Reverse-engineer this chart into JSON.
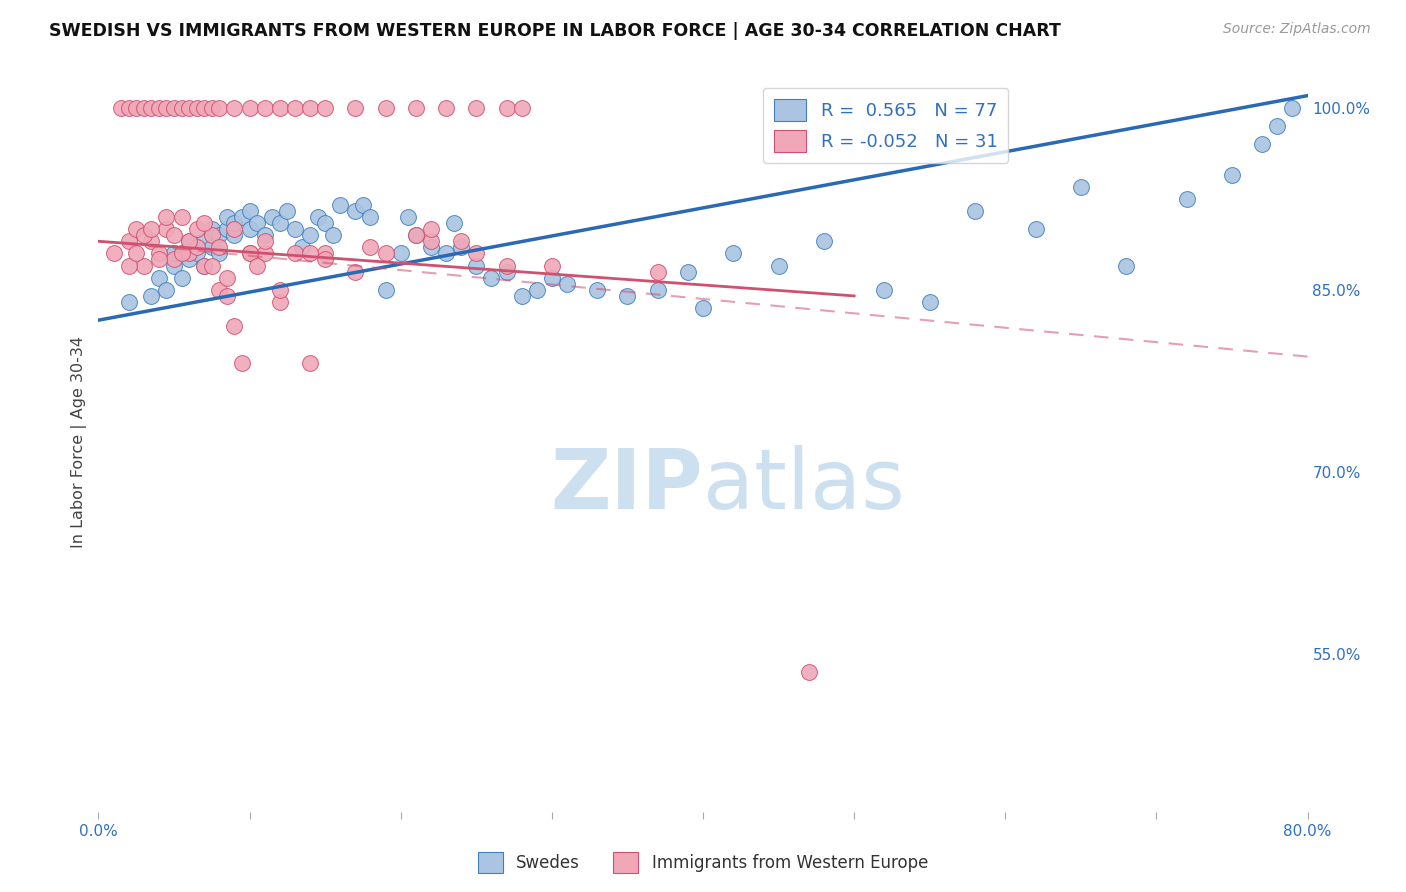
{
  "title": "SWEDISH VS IMMIGRANTS FROM WESTERN EUROPE IN LABOR FORCE | AGE 30-34 CORRELATION CHART",
  "source": "Source: ZipAtlas.com",
  "ylabel": "In Labor Force | Age 30-34",
  "xlim": [
    0.0,
    80.0
  ],
  "ylim": [
    42.0,
    103.0
  ],
  "xticks": [
    0.0,
    10.0,
    20.0,
    30.0,
    40.0,
    50.0,
    60.0,
    70.0,
    80.0
  ],
  "xtick_labels": [
    "0.0%",
    "",
    "",
    "",
    "",
    "",
    "",
    "",
    "80.0%"
  ],
  "ytick_labels_right": [
    "100.0%",
    "85.0%",
    "70.0%",
    "55.0%"
  ],
  "ytick_positions_right": [
    100.0,
    85.0,
    70.0,
    55.0
  ],
  "blue_R": 0.565,
  "blue_N": 77,
  "pink_R": -0.052,
  "pink_N": 31,
  "blue_color": "#aac4e2",
  "blue_edge_color": "#4080c0",
  "pink_color": "#f0a8b8",
  "pink_edge_color": "#d05070",
  "blue_line_color": "#2a6ab5",
  "pink_line_color": "#d05070",
  "blue_scatter_x": [
    2.0,
    3.5,
    4.0,
    4.5,
    5.0,
    5.0,
    5.5,
    5.8,
    6.0,
    6.0,
    6.5,
    7.0,
    7.0,
    7.5,
    7.5,
    8.0,
    8.0,
    8.5,
    8.5,
    9.0,
    9.0,
    9.5,
    10.0,
    10.0,
    10.5,
    11.0,
    11.5,
    12.0,
    12.5,
    13.0,
    13.5,
    14.0,
    14.5,
    15.0,
    15.5,
    16.0,
    17.0,
    17.5,
    18.0,
    19.0,
    20.0,
    20.5,
    21.0,
    22.0,
    23.0,
    23.5,
    24.0,
    25.0,
    26.0,
    27.0,
    28.0,
    29.0,
    30.0,
    31.0,
    33.0,
    35.0,
    37.0,
    39.0,
    40.0,
    42.0,
    45.0,
    48.0,
    52.0,
    55.0,
    58.0,
    62.0,
    65.0,
    68.0,
    72.0,
    75.0,
    77.0,
    78.0,
    79.0
  ],
  "blue_scatter_y": [
    84.0,
    84.5,
    86.0,
    85.0,
    87.0,
    88.0,
    86.0,
    88.0,
    87.5,
    89.0,
    88.0,
    87.0,
    89.0,
    88.5,
    90.0,
    88.0,
    89.5,
    90.0,
    91.0,
    89.5,
    90.5,
    91.0,
    90.0,
    91.5,
    90.5,
    89.5,
    91.0,
    90.5,
    91.5,
    90.0,
    88.5,
    89.5,
    91.0,
    90.5,
    89.5,
    92.0,
    91.5,
    92.0,
    91.0,
    85.0,
    88.0,
    91.0,
    89.5,
    88.5,
    88.0,
    90.5,
    88.5,
    87.0,
    86.0,
    86.5,
    84.5,
    85.0,
    86.0,
    85.5,
    85.0,
    84.5,
    85.0,
    86.5,
    83.5,
    88.0,
    87.0,
    89.0,
    85.0,
    84.0,
    91.5,
    90.0,
    93.5,
    87.0,
    92.5,
    94.5,
    97.0,
    98.5,
    100.0
  ],
  "pink_scatter_x": [
    1.0,
    2.0,
    2.5,
    3.0,
    3.5,
    4.0,
    4.5,
    5.0,
    5.5,
    6.0,
    6.5,
    7.0,
    7.5,
    8.0,
    8.5,
    9.0,
    9.5,
    10.0,
    11.0,
    12.0,
    14.0,
    15.0,
    18.0,
    22.0,
    30.0,
    37.0,
    47.0
  ],
  "pink_scatter_y": [
    88.0,
    89.0,
    90.0,
    87.0,
    89.0,
    88.0,
    90.0,
    87.5,
    91.0,
    88.0,
    88.5,
    87.0,
    89.5,
    85.0,
    84.5,
    82.0,
    79.0,
    88.0,
    88.0,
    84.0,
    79.0,
    88.0,
    88.5,
    89.0,
    87.0,
    86.5,
    53.5
  ],
  "pink_scatter_x2": [
    2.0,
    2.5,
    3.0,
    3.5,
    4.0,
    4.5,
    5.0,
    5.5,
    6.0,
    6.5,
    7.0,
    7.5,
    8.0,
    8.5,
    9.0,
    10.0,
    10.5,
    11.0,
    12.0,
    13.0,
    14.0,
    15.0,
    17.0,
    19.0,
    21.0,
    22.0,
    24.0,
    25.0,
    27.0
  ],
  "pink_scatter_y2": [
    87.0,
    88.0,
    89.5,
    90.0,
    87.5,
    91.0,
    89.5,
    88.0,
    89.0,
    90.0,
    90.5,
    87.0,
    88.5,
    86.0,
    90.0,
    88.0,
    87.0,
    89.0,
    85.0,
    88.0,
    88.0,
    87.5,
    86.5,
    88.0,
    89.5,
    90.0,
    89.0,
    88.0,
    87.0
  ],
  "pink_top_x": [
    1.5,
    2.0,
    2.5,
    3.0,
    3.5,
    4.0,
    4.5,
    5.0,
    5.5,
    6.0,
    6.5,
    7.0,
    7.5,
    8.0,
    9.0,
    10.0,
    11.0,
    12.0,
    13.0,
    14.0,
    15.0,
    17.0,
    19.0,
    21.0,
    23.0,
    25.0,
    27.0,
    28.0
  ],
  "pink_top_y": [
    100.0,
    100.0,
    100.0,
    100.0,
    100.0,
    100.0,
    100.0,
    100.0,
    100.0,
    100.0,
    100.0,
    100.0,
    100.0,
    100.0,
    100.0,
    100.0,
    100.0,
    100.0,
    100.0,
    100.0,
    100.0,
    100.0,
    100.0,
    100.0,
    100.0,
    100.0,
    100.0,
    100.0
  ],
  "blue_line_x0": 0.0,
  "blue_line_x1": 80.0,
  "blue_line_y0": 82.5,
  "blue_line_y1": 101.0,
  "pink_line_x0": 0.0,
  "pink_line_x1": 50.0,
  "pink_line_y0": 89.0,
  "pink_line_y1": 84.5,
  "pink_dash_x0": 0.0,
  "pink_dash_x1": 80.0,
  "pink_dash_y0": 89.0,
  "pink_dash_y1": 79.5,
  "watermark_zip": "ZIP",
  "watermark_atlas": "atlas",
  "watermark_color": "#cde0f0",
  "background_color": "#ffffff",
  "grid_color": "#d8d8d8"
}
